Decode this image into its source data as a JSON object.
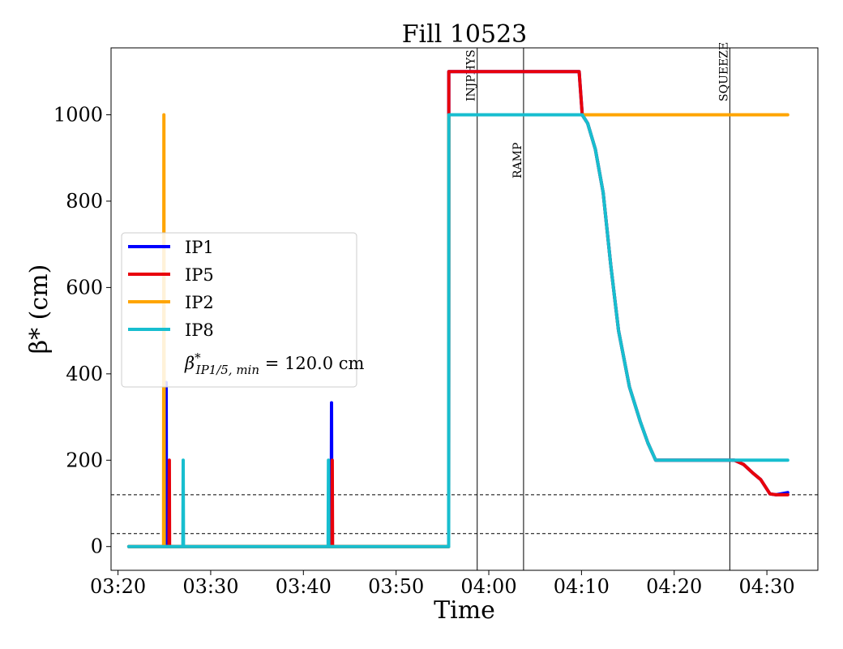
{
  "chart_data": {
    "type": "line",
    "title": "Fill 10523",
    "xlabel": "Time",
    "ylabel": "β* (cm)",
    "x_ticks": [
      "03:20",
      "03:30",
      "03:40",
      "03:50",
      "04:00",
      "04:10",
      "04:20",
      "04:30"
    ],
    "y_ticks": [
      "0",
      "200",
      "400",
      "600",
      "800",
      "1000"
    ],
    "xlim": [
      "03:19:15",
      "04:35:30"
    ],
    "ylim": [
      -55,
      1155
    ],
    "grid": false,
    "legend_placement": "center-left",
    "series": [
      {
        "name": "IP1",
        "color": "#0000ff",
        "points": [
          [
            "03:21:10",
            0
          ],
          [
            "03:25:10",
            0
          ],
          [
            "03:25:12",
            380
          ],
          [
            "03:25:14",
            0
          ],
          [
            "03:43:00",
            0
          ],
          [
            "03:43:02",
            333
          ],
          [
            "03:43:04",
            0
          ],
          [
            "03:55:40",
            0
          ],
          [
            "03:55:41",
            1100
          ],
          [
            "04:09:45",
            1100
          ],
          [
            "04:10:05",
            1000
          ],
          [
            "04:10:40",
            980
          ],
          [
            "04:11:30",
            920
          ],
          [
            "04:12:20",
            820
          ],
          [
            "04:13:10",
            650
          ],
          [
            "04:14:00",
            500
          ],
          [
            "04:15:10",
            370
          ],
          [
            "04:16:20",
            290
          ],
          [
            "04:17:10",
            240
          ],
          [
            "04:18:00",
            200
          ],
          [
            "04:26:30",
            200
          ],
          [
            "04:27:30",
            190
          ],
          [
            "04:28:30",
            170
          ],
          [
            "04:29:20",
            155
          ],
          [
            "04:30:20",
            122
          ],
          [
            "04:31:00",
            120
          ],
          [
            "04:32:15",
            125
          ]
        ]
      },
      {
        "name": "IP5",
        "color": "#e8000b",
        "points": [
          [
            "03:21:10",
            0
          ],
          [
            "03:25:30",
            0
          ],
          [
            "03:25:32",
            200
          ],
          [
            "03:25:34",
            0
          ],
          [
            "03:43:05",
            0
          ],
          [
            "03:43:07",
            200
          ],
          [
            "03:43:09",
            0
          ],
          [
            "03:55:40",
            0
          ],
          [
            "03:55:41",
            1100
          ],
          [
            "04:09:45",
            1100
          ],
          [
            "04:10:05",
            1000
          ],
          [
            "04:10:40",
            980
          ],
          [
            "04:11:30",
            920
          ],
          [
            "04:12:20",
            820
          ],
          [
            "04:13:10",
            650
          ],
          [
            "04:14:00",
            500
          ],
          [
            "04:15:10",
            370
          ],
          [
            "04:16:20",
            290
          ],
          [
            "04:17:10",
            240
          ],
          [
            "04:18:00",
            200
          ],
          [
            "04:26:30",
            200
          ],
          [
            "04:27:30",
            190
          ],
          [
            "04:28:30",
            170
          ],
          [
            "04:29:20",
            155
          ],
          [
            "04:30:20",
            122
          ],
          [
            "04:31:00",
            120
          ],
          [
            "04:32:15",
            120
          ]
        ]
      },
      {
        "name": "IP2",
        "color": "#ffa500",
        "points": [
          [
            "03:21:10",
            0
          ],
          [
            "03:24:55",
            0
          ],
          [
            "03:24:57",
            1000
          ],
          [
            "03:24:59",
            0
          ],
          [
            "03:55:40",
            0
          ],
          [
            "03:55:41",
            1000
          ],
          [
            "04:32:15",
            1000
          ]
        ]
      },
      {
        "name": "IP8",
        "color": "#17becf",
        "points": [
          [
            "03:21:10",
            0
          ],
          [
            "03:27:00",
            0
          ],
          [
            "03:27:02",
            200
          ],
          [
            "03:27:04",
            0
          ],
          [
            "03:42:40",
            0
          ],
          [
            "03:42:42",
            200
          ],
          [
            "03:42:44",
            0
          ],
          [
            "03:55:40",
            0
          ],
          [
            "03:55:41",
            1000
          ],
          [
            "04:10:05",
            1000
          ],
          [
            "04:10:40",
            980
          ],
          [
            "04:11:30",
            920
          ],
          [
            "04:12:20",
            820
          ],
          [
            "04:13:10",
            650
          ],
          [
            "04:14:00",
            500
          ],
          [
            "04:15:10",
            370
          ],
          [
            "04:16:20",
            290
          ],
          [
            "04:17:10",
            240
          ],
          [
            "04:18:00",
            200
          ],
          [
            "04:32:15",
            200
          ]
        ]
      }
    ],
    "vertical_lines": [
      {
        "time": "03:58:45",
        "label": "INJPHYS"
      },
      {
        "time": "04:03:45",
        "label": "RAMP"
      },
      {
        "time": "04:26:00",
        "label": "SQUEEZE"
      }
    ],
    "horizontal_lines": [
      120,
      30
    ],
    "legend_extra_label": "β*IP1/5, min = 120.0 cm"
  }
}
